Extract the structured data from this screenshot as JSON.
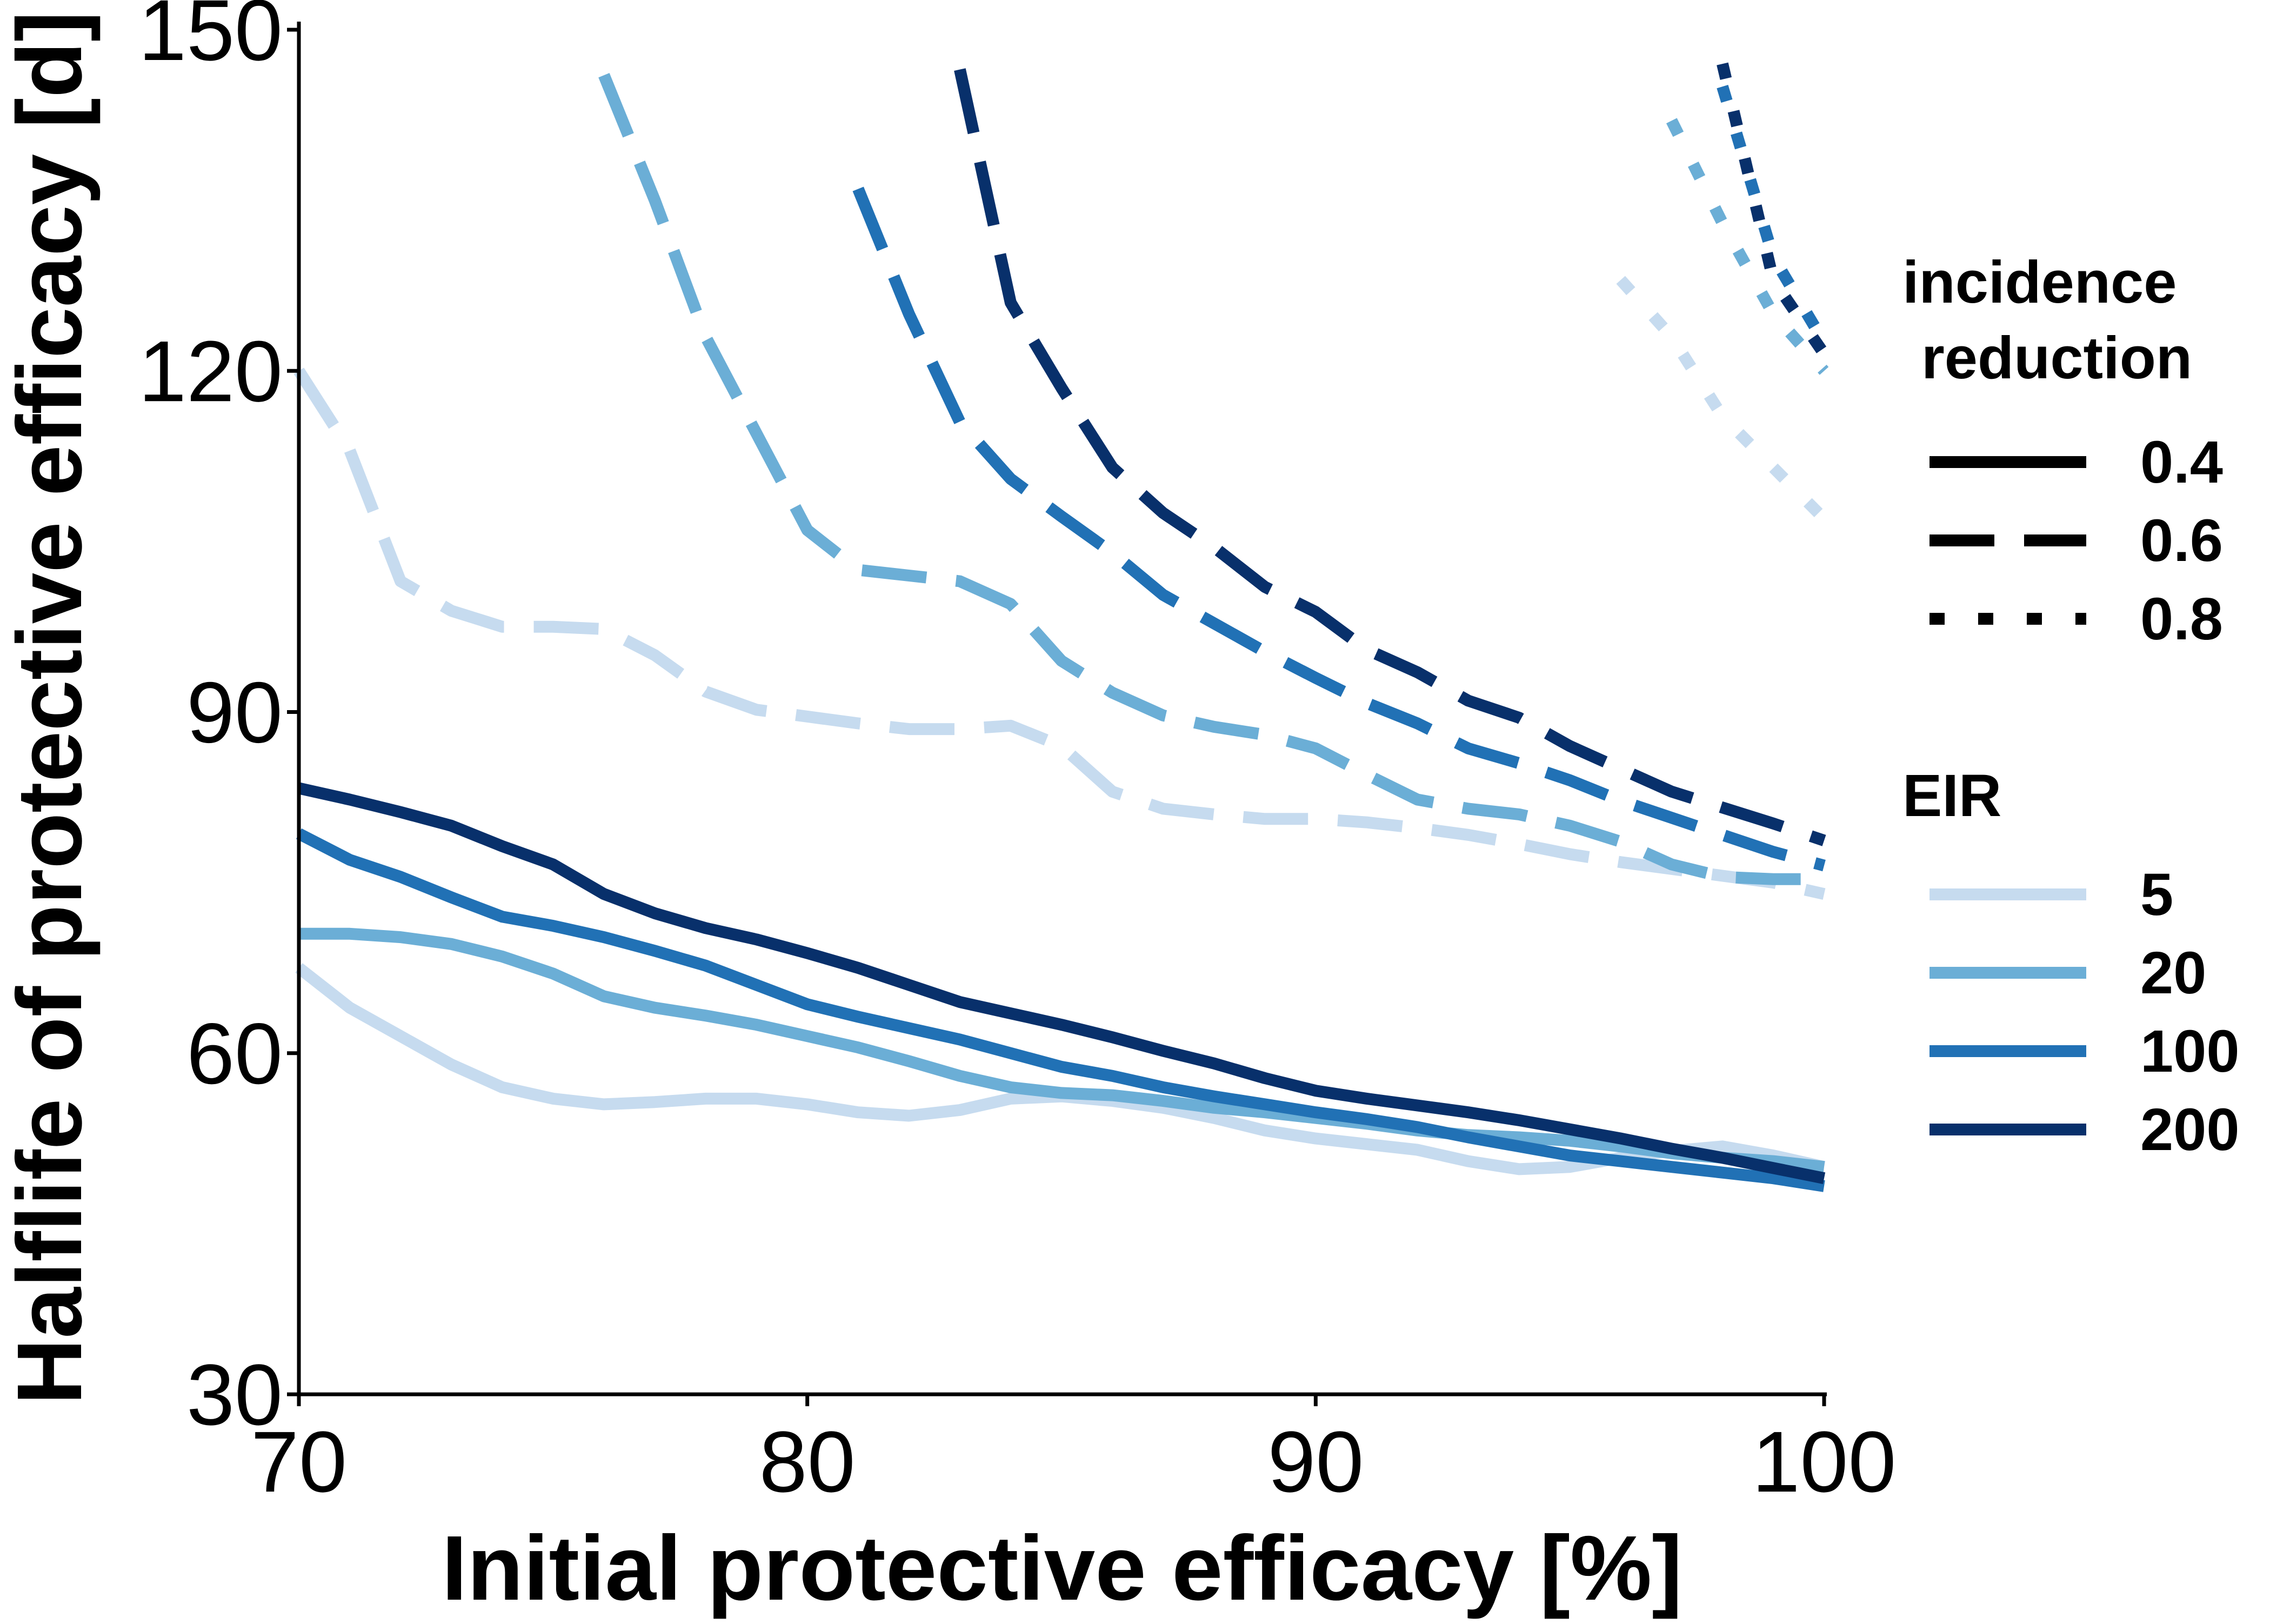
{
  "chart_data": {
    "type": "line",
    "title": "",
    "xlabel": "Initial protective efficacy [%]",
    "ylabel": "Halflife of protective efficacy [d]",
    "xlim": [
      70,
      100
    ],
    "ylim": [
      30,
      150
    ],
    "xticks": [
      70,
      80,
      90,
      100
    ],
    "yticks": [
      30,
      60,
      90,
      120,
      150
    ],
    "grid": false,
    "legend": {
      "placement": "right",
      "linetype_title": "incidence\nreduction",
      "linetype_entries": [
        {
          "label": "0.4",
          "style": "solid"
        },
        {
          "label": "0.6",
          "style": "dashed"
        },
        {
          "label": "0.8",
          "style": "dotted"
        }
      ],
      "color_title": "EIR",
      "color_entries": [
        {
          "label": "5",
          "color": "#c6dbef"
        },
        {
          "label": "20",
          "color": "#6baed6"
        },
        {
          "label": "100",
          "color": "#2171b5"
        },
        {
          "label": "200",
          "color": "#08306b"
        }
      ]
    },
    "series": [
      {
        "EIR": "5",
        "incidence_reduction": "0.4",
        "color": "#c6dbef",
        "style": "solid",
        "x": [
          70,
          71,
          72,
          73,
          74,
          75,
          76,
          77,
          78,
          79,
          80,
          81,
          82,
          83,
          84,
          85,
          86,
          87,
          88,
          89,
          90,
          91,
          92,
          93,
          94,
          95,
          96,
          97,
          98,
          99,
          100
        ],
        "y": [
          67.5,
          64,
          61.5,
          59,
          57,
          56,
          55.5,
          55.7,
          56,
          56,
          55.5,
          54.8,
          54.5,
          55,
          56,
          56.2,
          55.8,
          55.2,
          54.3,
          53.2,
          52.5,
          52,
          51.5,
          50.5,
          49.8,
          50,
          50.8,
          51.4,
          51.8,
          51,
          50
        ]
      },
      {
        "EIR": "20",
        "incidence_reduction": "0.4",
        "color": "#6baed6",
        "style": "solid",
        "x": [
          70,
          71,
          72,
          73,
          74,
          75,
          76,
          77,
          78,
          79,
          80,
          81,
          82,
          83,
          84,
          85,
          86,
          87,
          88,
          89,
          90,
          91,
          92,
          93,
          94,
          95,
          96,
          97,
          98,
          99,
          100
        ],
        "y": [
          70.5,
          70.5,
          70.2,
          69.6,
          68.5,
          67,
          65,
          64,
          63.3,
          62.5,
          61.5,
          60.5,
          59.3,
          58,
          57,
          56.5,
          56.3,
          55.8,
          55.2,
          54.8,
          54.3,
          53.8,
          53.2,
          52.8,
          52.6,
          52.3,
          51.8,
          51.2,
          50.8,
          50.5,
          50
        ]
      },
      {
        "EIR": "100",
        "incidence_reduction": "0.4",
        "color": "#2171b5",
        "style": "solid",
        "x": [
          70,
          71,
          72,
          73,
          74,
          75,
          76,
          77,
          78,
          79,
          80,
          81,
          82,
          83,
          84,
          85,
          86,
          87,
          88,
          89,
          90,
          91,
          92,
          93,
          94,
          95,
          96,
          97,
          98,
          99,
          100
        ],
        "y": [
          79.3,
          77,
          75.5,
          73.7,
          72,
          71.2,
          70.2,
          69,
          67.7,
          66,
          64.3,
          63.2,
          62.2,
          61.2,
          60,
          58.8,
          58,
          57,
          56.2,
          55.5,
          54.8,
          54.2,
          53.5,
          52.6,
          51.8,
          51,
          50.5,
          50,
          49.5,
          49,
          48.3
        ]
      },
      {
        "EIR": "200",
        "incidence_reduction": "0.4",
        "color": "#08306b",
        "style": "solid",
        "x": [
          70,
          71,
          72,
          73,
          74,
          75,
          76,
          77,
          78,
          79,
          80,
          81,
          82,
          83,
          84,
          85,
          86,
          87,
          88,
          89,
          90,
          91,
          92,
          93,
          94,
          95,
          96,
          97,
          98,
          99,
          100
        ],
        "y": [
          83.3,
          82.3,
          81.2,
          80,
          78.2,
          76.6,
          74,
          72.3,
          71,
          70,
          68.8,
          67.5,
          66,
          64.5,
          63.5,
          62.5,
          61.4,
          60.2,
          59.1,
          57.8,
          56.7,
          56,
          55.4,
          54.8,
          54.1,
          53.3,
          52.5,
          51.6,
          50.8,
          49.9,
          49
        ]
      },
      {
        "EIR": "5",
        "incidence_reduction": "0.6",
        "color": "#c6dbef",
        "style": "dashed",
        "x": [
          70,
          71,
          72,
          73,
          74,
          75,
          76,
          77,
          78,
          79,
          80,
          81,
          82,
          83,
          84,
          85,
          86,
          87,
          88,
          89,
          90,
          91,
          92,
          93,
          94,
          95,
          96,
          97,
          98,
          99,
          100
        ],
        "y": [
          120,
          113,
          101.5,
          98.9,
          97.5,
          97.5,
          97.3,
          95,
          91.8,
          90.2,
          89.6,
          89,
          88.5,
          88.5,
          88.8,
          87,
          83,
          81.5,
          81,
          80.6,
          80.6,
          80.3,
          79.8,
          79.2,
          78.4,
          77.5,
          76.8,
          76.2,
          75.6,
          75,
          74
        ]
      },
      {
        "EIR": "20",
        "incidence_reduction": "0.6",
        "color": "#6baed6",
        "style": "dashed",
        "x": [
          76,
          77,
          78,
          79,
          80,
          81,
          82,
          83,
          84,
          85,
          86,
          87,
          88,
          89,
          90,
          91,
          92,
          93,
          94,
          95,
          96,
          97,
          98,
          99,
          100
        ],
        "y": [
          146,
          135,
          123,
          114.5,
          106,
          102.5,
          102,
          101.5,
          99.5,
          94.5,
          91.7,
          89.7,
          88.7,
          88,
          86.8,
          84.5,
          82.3,
          81.5,
          81,
          80,
          78.6,
          76.6,
          75.5,
          75.3,
          75.3
        ]
      },
      {
        "EIR": "100",
        "incidence_reduction": "0.6",
        "color": "#2171b5",
        "style": "dashed",
        "x": [
          81,
          82,
          83,
          84,
          85,
          86,
          87,
          88,
          89,
          90,
          91,
          92,
          93,
          94,
          95,
          96,
          97,
          98,
          99,
          100
        ],
        "y": [
          136,
          125,
          115.5,
          110.5,
          107.2,
          104,
          100.3,
          97.8,
          95.3,
          93,
          90.8,
          89,
          86.8,
          85.5,
          84,
          82.2,
          80.7,
          79.2,
          77.7,
          76.5
        ]
      },
      {
        "EIR": "200",
        "incidence_reduction": "0.6",
        "color": "#08306b",
        "style": "dashed",
        "x": [
          83,
          84,
          85,
          86,
          87,
          88,
          89,
          90,
          91,
          92,
          93,
          94,
          95,
          96,
          97,
          98,
          99,
          100
        ],
        "y": [
          146.5,
          126,
          118.5,
          111.5,
          107.5,
          104.5,
          101,
          98.8,
          95.5,
          93.5,
          91,
          89.5,
          87,
          85,
          83,
          81.6,
          80.2,
          78.7
        ]
      },
      {
        "EIR": "5",
        "incidence_reduction": "0.8",
        "color": "#c6dbef",
        "style": "dotted",
        "x": [
          96,
          97,
          98,
          99,
          100
        ],
        "y": [
          128,
          123,
          116,
          111.5,
          107
        ]
      },
      {
        "EIR": "20",
        "incidence_reduction": "0.8",
        "color": "#6baed6",
        "style": "dotted",
        "x": [
          97,
          98,
          99,
          100
        ],
        "y": [
          142,
          133,
          125,
          120
        ]
      },
      {
        "EIR": "100",
        "incidence_reduction": "0.8",
        "color": "#2171b5",
        "style": "dotted",
        "x": [
          98,
          99,
          100
        ],
        "y": [
          145,
          130,
          122.5
        ]
      },
      {
        "EIR": "200",
        "incidence_reduction": "0.8",
        "color": "#08306b",
        "style": "dotted",
        "x": [
          98,
          99,
          100
        ],
        "y": [
          147,
          128,
          121.5
        ]
      }
    ]
  }
}
